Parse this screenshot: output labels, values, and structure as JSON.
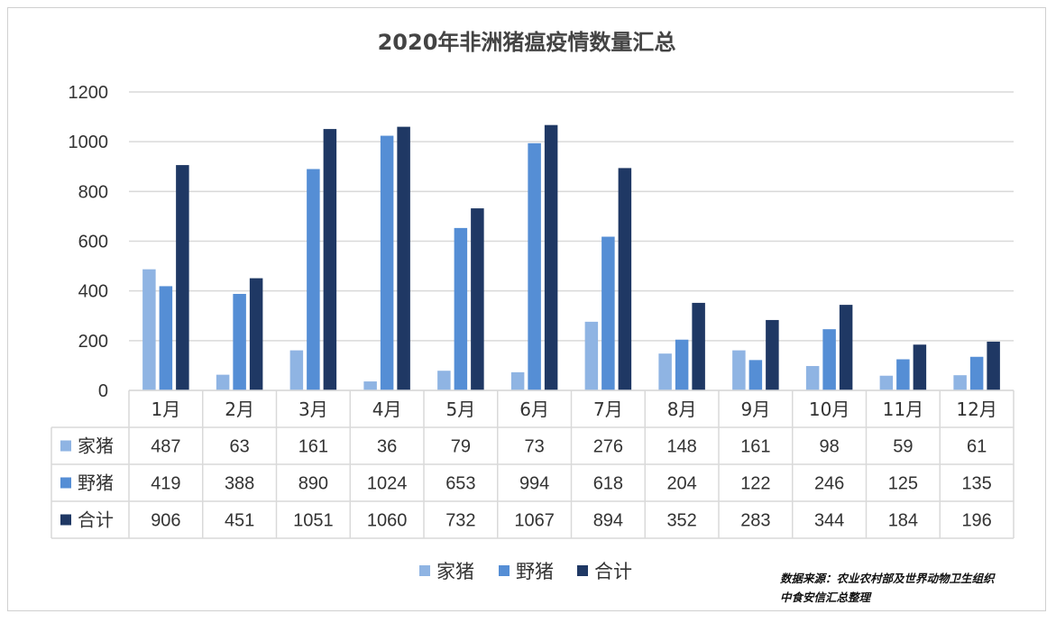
{
  "chart_data": {
    "type": "bar",
    "title": "2020年非洲猪瘟疫情数量汇总",
    "categories": [
      "1月",
      "2月",
      "3月",
      "4月",
      "5月",
      "6月",
      "7月",
      "8月",
      "9月",
      "10月",
      "11月",
      "12月"
    ],
    "series": [
      {
        "name": "家猪",
        "color": "#8fb4e3",
        "values": [
          487,
          63,
          161,
          36,
          79,
          73,
          276,
          148,
          161,
          98,
          59,
          61
        ]
      },
      {
        "name": "野猪",
        "color": "#558ed5",
        "values": [
          419,
          388,
          890,
          1024,
          653,
          994,
          618,
          204,
          122,
          246,
          125,
          135
        ]
      },
      {
        "name": "合计",
        "color": "#1f3864",
        "values": [
          906,
          451,
          1051,
          1060,
          732,
          1067,
          894,
          352,
          283,
          344,
          184,
          196
        ]
      }
    ],
    "ylim": [
      0,
      1200
    ],
    "yticks": [
      0,
      200,
      400,
      600,
      800,
      1000,
      1200
    ],
    "grid": true,
    "legend": "bottom",
    "data_table": true
  },
  "source_note": {
    "line1": "数据来源：农业农村部及世界动物卫生组织",
    "line2": "中食安信汇总整理"
  }
}
